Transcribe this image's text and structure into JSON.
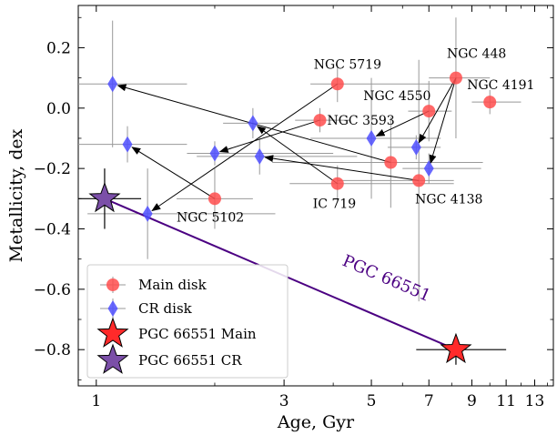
{
  "chart_data": {
    "type": "scatter",
    "xlabel": "Age, Gyr",
    "ylabel": "Metallicity, dex",
    "xscale": "log",
    "xlim": [
      0.9,
      14.5
    ],
    "ylim": [
      -0.92,
      0.34
    ],
    "xticks": [
      1,
      3,
      5,
      7,
      9,
      11,
      13
    ],
    "yticks": [
      -0.8,
      -0.6,
      -0.4,
      -0.2,
      0.0,
      0.2
    ],
    "ytick_labels": [
      "−0.8",
      "−0.6",
      "−0.4",
      "−0.2",
      "0.0",
      "0.2"
    ],
    "grid": false,
    "legend_position": "lower-left",
    "legend": [
      {
        "label": "Main disk",
        "marker": "circle",
        "color": "#ff4d4d"
      },
      {
        "label": "CR disk",
        "marker": "diamond",
        "color": "#4d4dff"
      },
      {
        "label": "PGC 66551 Main",
        "marker": "star",
        "color": "#ff2a2a"
      },
      {
        "label": "PGC 66551 CR",
        "marker": "star",
        "color": "#7b4fa8"
      }
    ],
    "colors": {
      "main": "#ff4d4d",
      "cr": "#4d4dff",
      "errorbar": "#999999",
      "pgc_line": "#4b0082",
      "pgc_main": "#ff2a2a",
      "pgc_cr": "#7b4fa8"
    },
    "series": [
      {
        "name": "Main disk",
        "marker": "circle",
        "points": [
          {
            "x": 4.1,
            "y": 0.08,
            "xerr": [
              0.6,
              4.0
            ],
            "yerr": [
              0.06,
              0.06
            ]
          },
          {
            "x": 3.7,
            "y": -0.04,
            "xerr": [
              0.5,
              0.7
            ],
            "yerr": [
              0.04,
              0.04
            ]
          },
          {
            "x": 2.0,
            "y": -0.3,
            "xerr": [
              0.4,
              0.5
            ],
            "yerr": [
              0.1,
              0.1
            ]
          },
          {
            "x": 4.1,
            "y": -0.25,
            "xerr": [
              1.0,
              4.0
            ],
            "yerr": [
              0.06,
              0.06
            ]
          },
          {
            "x": 5.6,
            "y": -0.18,
            "xerr": [
              2.8,
              4.0
            ],
            "yerr": [
              0.15,
              0.15
            ]
          },
          {
            "x": 6.6,
            "y": -0.24,
            "xerr": [
              2.5,
              1.5
            ],
            "yerr": [
              0.4,
              0.4
            ]
          },
          {
            "x": 7.0,
            "y": -0.01,
            "xerr": [
              0.8,
              1.0
            ],
            "yerr": [
              0.1,
              0.1
            ]
          },
          {
            "x": 8.2,
            "y": 0.1,
            "xerr": [
              1.2,
              1.8
            ],
            "yerr": [
              0.2,
              0.2
            ]
          },
          {
            "x": 10.0,
            "y": 0.02,
            "xerr": [
              1.0,
              2.0
            ],
            "yerr": [
              0.04,
              0.04
            ]
          }
        ]
      },
      {
        "name": "CR disk",
        "marker": "diamond",
        "points": [
          {
            "x": 1.1,
            "y": 0.08,
            "xerr": [
              0.3,
              0.6
            ],
            "yerr": [
              0.21,
              0.21
            ]
          },
          {
            "x": 1.2,
            "y": -0.12,
            "xerr": [
              0.3,
              0.5
            ],
            "yerr": [
              0.06,
              0.06
            ]
          },
          {
            "x": 1.35,
            "y": -0.35,
            "xerr": [
              0.4,
              1.5
            ],
            "yerr": [
              0.15,
              0.15
            ]
          },
          {
            "x": 2.0,
            "y": -0.15,
            "xerr": [
              0.3,
              2.0
            ],
            "yerr": [
              0.04,
              0.04
            ]
          },
          {
            "x": 2.5,
            "y": -0.05,
            "xerr": [
              0.4,
              0.4
            ],
            "yerr": [
              0.05,
              0.05
            ]
          },
          {
            "x": 2.6,
            "y": -0.16,
            "xerr": [
              0.8,
              2.0
            ],
            "yerr": [
              0.06,
              0.06
            ]
          },
          {
            "x": 5.0,
            "y": -0.1,
            "xerr": [
              1.5,
              2.5
            ],
            "yerr": [
              0.2,
              0.2
            ]
          },
          {
            "x": 6.5,
            "y": -0.13,
            "xerr": [
              1.0,
              1.0
            ],
            "yerr": [
              0.04,
              0.04
            ]
          },
          {
            "x": 7.0,
            "y": -0.2,
            "xerr": [
              1.0,
              2.5
            ],
            "yerr": [
              0.05,
              0.05
            ]
          }
        ]
      }
    ],
    "arrows": [
      {
        "from": [
          4.1,
          0.08
        ],
        "to": [
          1.35,
          -0.35
        ]
      },
      {
        "from": [
          3.7,
          -0.04
        ],
        "to": [
          2.0,
          -0.15
        ]
      },
      {
        "from": [
          4.1,
          -0.25
        ],
        "to": [
          2.5,
          -0.05
        ]
      },
      {
        "from": [
          5.6,
          -0.18
        ],
        "to": [
          1.1,
          0.08
        ]
      },
      {
        "from": [
          6.6,
          -0.24
        ],
        "to": [
          2.6,
          -0.16
        ]
      },
      {
        "from": [
          7.0,
          -0.01
        ],
        "to": [
          5.0,
          -0.1
        ]
      },
      {
        "from": [
          8.2,
          0.1
        ],
        "to": [
          6.5,
          -0.13
        ]
      },
      {
        "from": [
          8.2,
          0.1
        ],
        "to": [
          7.0,
          -0.2
        ]
      },
      {
        "from": [
          2.0,
          -0.3
        ],
        "to": [
          1.2,
          -0.12
        ]
      }
    ],
    "annotations": [
      {
        "text": "NGC 5719",
        "x": 4.1,
        "y": 0.08,
        "dx": -26,
        "dy": -17
      },
      {
        "text": "NGC 448",
        "x": 8.2,
        "y": 0.1,
        "dx": -10,
        "dy": -22
      },
      {
        "text": "NGC 4550",
        "x": 7.0,
        "y": -0.01,
        "dx": -72,
        "dy": -12
      },
      {
        "text": "NGC 4191",
        "x": 10.0,
        "y": 0.02,
        "dx": -25,
        "dy": -14
      },
      {
        "text": "NGC 3593",
        "x": 3.7,
        "y": -0.04,
        "dx": 8,
        "dy": 5
      },
      {
        "text": "IC 719",
        "x": 4.1,
        "y": -0.25,
        "dx": -27,
        "dy": 27
      },
      {
        "text": "NGC 4138",
        "x": 6.6,
        "y": -0.24,
        "dx": -4,
        "dy": 25
      },
      {
        "text": "NGC 5102",
        "x": 2.0,
        "y": -0.3,
        "dx": -42,
        "dy": 25
      }
    ],
    "pgc66551": {
      "label": "PGC 66551",
      "main": {
        "x": 8.2,
        "y": -0.8,
        "xerr": [
          1.7,
          2.8
        ],
        "yerr": [
          0.05,
          0.05
        ]
      },
      "cr": {
        "x": 1.05,
        "y": -0.3,
        "xerr": [
          0.15,
          0.25
        ],
        "yerr": [
          0.1,
          0.1
        ]
      },
      "label_x": 5.4,
      "label_y": -0.58
    }
  }
}
